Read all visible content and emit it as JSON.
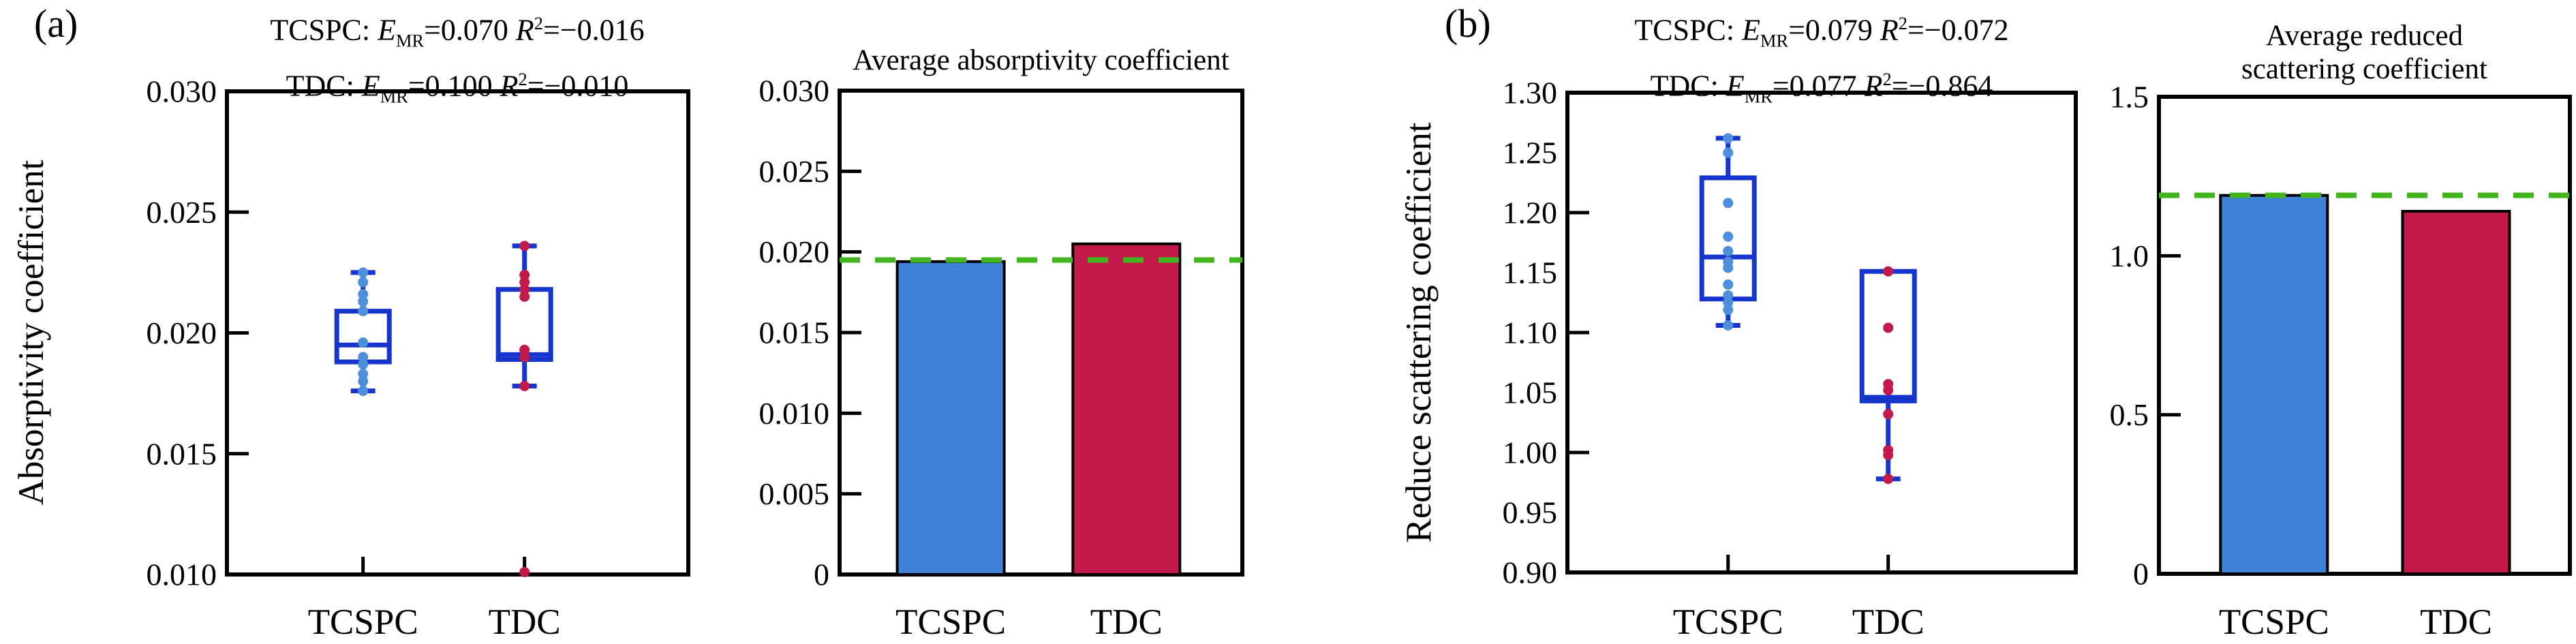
{
  "figure": {
    "background": "#ffffff",
    "panel_labels": {
      "a": "(a)",
      "b": "(b)"
    },
    "colors": {
      "box_outline": "#1535cd",
      "tcspc_bar": "#4081d8",
      "tdc_bar": "#c11a4b",
      "tcspc_point": "#4e8fdc",
      "tdc_point": "#c11a4b",
      "reference_green": "#41b41e",
      "axis_black": "#000000"
    }
  },
  "chart_data": [
    {
      "id": "absorptivity_box",
      "type": "box",
      "panel": "(a)",
      "stats": [
        {
          "method": "TCSPC: ",
          "emr_base": "E",
          "emr_sub": "MR",
          "emr_eq": "=0.070 ",
          "r2_base": "R",
          "r2_sup": "2",
          "r2_eq": "=−0.016"
        },
        {
          "method": "TDC: ",
          "emr_base": "E",
          "emr_sub": "MR",
          "emr_eq": "=0.100 ",
          "r2_base": "R",
          "r2_sup": "2",
          "r2_eq": "=−0.010"
        }
      ],
      "ylabel": "Absorptivity coefficient",
      "ylim": [
        0.01,
        0.03
      ],
      "yticks": [
        0.03,
        0.025,
        0.02,
        0.015,
        0.01
      ],
      "ytick_labels": [
        "0.030",
        "0.025",
        "0.020",
        "0.015",
        "0.010"
      ],
      "tick_marks": [
        0.025,
        0.02,
        0.015
      ],
      "categories": [
        "TCSPC",
        "TDC"
      ],
      "grid": false,
      "series": [
        {
          "name": "TCSPC",
          "point_color": "tcspc_point",
          "box": {
            "whisker_low": 0.0176,
            "q1": 0.0188,
            "median": 0.0195,
            "q3": 0.0209,
            "whisker_high": 0.0225
          },
          "points": [
            0.0225,
            0.0221,
            0.0216,
            0.0213,
            0.0209,
            0.0196,
            0.019,
            0.0187,
            0.0183,
            0.018,
            0.0176
          ]
        },
        {
          "name": "TDC",
          "point_color": "tdc_point",
          "box": {
            "whisker_low": 0.0178,
            "q1": 0.0189,
            "median": 0.0191,
            "q3": 0.0218,
            "whisker_high": 0.0236
          },
          "points": [
            0.0236,
            0.0224,
            0.0221,
            0.0218,
            0.0215,
            0.0193,
            0.019,
            0.0178,
            0.0101
          ]
        }
      ]
    },
    {
      "id": "absorptivity_bar",
      "type": "bar",
      "title_lines": [
        "Average absorptivity coefficient"
      ],
      "ylim": [
        0,
        0.03
      ],
      "yticks": [
        0.03,
        0.025,
        0.02,
        0.015,
        0.01,
        0.005,
        0
      ],
      "ytick_labels": [
        "0.030",
        "0.025",
        "0.020",
        "0.015",
        "0.010",
        "0.005",
        "0"
      ],
      "tick_marks": [
        0.025,
        0.02,
        0.015,
        0.01,
        0.005
      ],
      "categories": [
        "TCSPC",
        "TDC"
      ],
      "values": [
        0.0194,
        0.0205
      ],
      "bar_colors": [
        "tcspc_bar",
        "tdc_bar"
      ],
      "reference_line": 0.0195,
      "grid": false
    },
    {
      "id": "scattering_box",
      "type": "box",
      "panel": "(b)",
      "stats": [
        {
          "method": "TCSPC: ",
          "emr_base": "E",
          "emr_sub": "MR",
          "emr_eq": "=0.079 ",
          "r2_base": "R",
          "r2_sup": "2",
          "r2_eq": "=−0.072"
        },
        {
          "method": "TDC: ",
          "emr_base": "E",
          "emr_sub": "MR",
          "emr_eq": "=0.077 ",
          "r2_base": "R",
          "r2_sup": "2",
          "r2_eq": "=−0.864"
        }
      ],
      "ylabel": "Reduce scattering coefficient",
      "ylim": [
        0.9,
        1.3
      ],
      "yticks": [
        1.3,
        1.25,
        1.2,
        1.15,
        1.1,
        1.05,
        1.0,
        0.95,
        0.9
      ],
      "ytick_labels": [
        "1.30",
        "1.25",
        "1.20",
        "1.15",
        "1.10",
        "1.05",
        "1.00",
        "0.95",
        "0.90"
      ],
      "tick_marks": [
        1.2,
        1.1,
        1.0
      ],
      "categories": [
        "TCSPC",
        "TDC"
      ],
      "grid": false,
      "series": [
        {
          "name": "TCSPC",
          "point_color": "tcspc_point",
          "box": {
            "whisker_low": 1.106,
            "q1": 1.128,
            "median": 1.163,
            "q3": 1.229,
            "whisker_high": 1.262
          },
          "points": [
            1.262,
            1.25,
            1.208,
            1.18,
            1.168,
            1.159,
            1.154,
            1.14,
            1.131,
            1.125,
            1.119,
            1.106
          ]
        },
        {
          "name": "TDC",
          "point_color": "tdc_point",
          "box": {
            "whisker_low": 0.978,
            "q1": 1.043,
            "median": 1.046,
            "q3": 1.151,
            "whisker_high": 1.151
          },
          "points": [
            1.151,
            1.104,
            1.057,
            1.052,
            1.032,
            1.002,
            0.998,
            0.978
          ]
        }
      ]
    },
    {
      "id": "scattering_bar",
      "type": "bar",
      "title_lines": [
        "Average reduced",
        "scattering coefficient"
      ],
      "ylim": [
        0,
        1.5
      ],
      "yticks": [
        1.5,
        1.0,
        0.5,
        0
      ],
      "ytick_labels": [
        "1.5",
        "1.0",
        "0.5",
        "0"
      ],
      "tick_marks": [
        1.0,
        0.5
      ],
      "categories": [
        "TCSPC",
        "TDC"
      ],
      "values": [
        1.19,
        1.14
      ],
      "bar_colors": [
        "tcspc_bar",
        "tdc_bar"
      ],
      "reference_line": 1.19,
      "grid": false
    }
  ]
}
